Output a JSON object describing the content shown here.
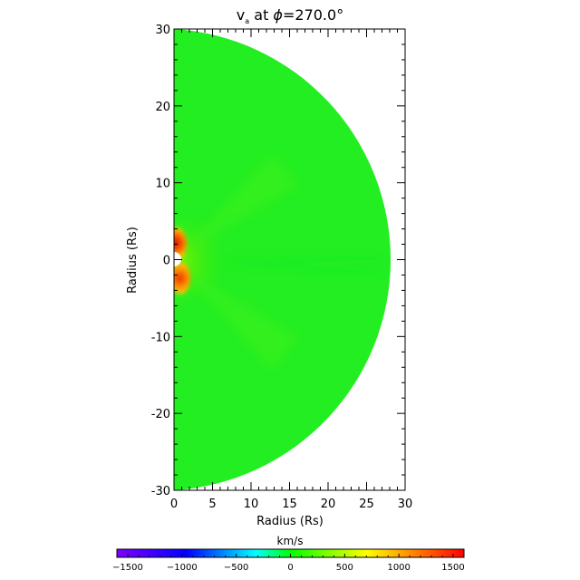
{
  "chart_data": [
    {
      "type": "heatmap",
      "title_main": "v",
      "title_sub": "a",
      "title_rest": " at ",
      "title_phi": "ϕ",
      "title_angle": "=270.0°",
      "xlabel": "Radius (Rs)",
      "ylabel": "Radius (Rs)",
      "xlim": [
        0,
        30
      ],
      "ylim": [
        -30,
        30
      ],
      "x_ticks": [
        0,
        5,
        10,
        15,
        20,
        25,
        30
      ],
      "y_ticks": [
        -30,
        -20,
        -10,
        0,
        10,
        20,
        30
      ],
      "domain": "half-disk of radius 30 Rs (x >= 0), inner boundary ~1 Rs",
      "background_value_kms": 450,
      "features": [
        {
          "name": "northern polar jet",
          "r_rs": 2,
          "theta_deg": 85,
          "value_kms": 1500
        },
        {
          "name": "southern polar jet",
          "r_rs": 3,
          "theta_deg": -75,
          "value_kms": 1300
        }
      ]
    },
    {
      "type": "colorbar",
      "label": "km/s",
      "range": [
        -1600,
        1600
      ],
      "ticks": [
        -1500,
        -1000,
        -500,
        0,
        500,
        1000,
        1500
      ],
      "tick_labels": [
        "−1500",
        "−1000",
        "−500",
        "0",
        "500",
        "1000",
        "1500"
      ],
      "colormap": [
        "#7f00ff",
        "#0000ff",
        "#00ffff",
        "#00ff00",
        "#ffff00",
        "#ff0000"
      ]
    }
  ]
}
